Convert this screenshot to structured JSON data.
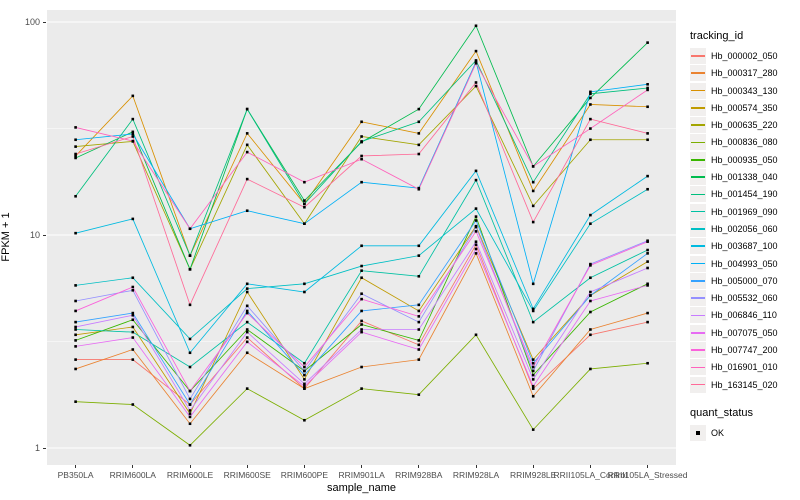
{
  "colors": {
    "panel_background": "#EBEBEB",
    "grid_major": "#FFFFFF",
    "grid_minor": "#FFFFFF",
    "tick_label": "#4D4D4D",
    "tick_mark": "#333333",
    "point": "#000000",
    "legend_key_fill": "#F1EFEE"
  },
  "legend": {
    "color_title": "tracking_id",
    "shape_title": "quant_status",
    "shape_items": [
      {
        "label": "OK",
        "marker": "black-square"
      }
    ]
  },
  "chart_data": {
    "type": "line",
    "title": "",
    "xlabel": "sample_name",
    "ylabel": "FPKM + 1",
    "y_scale": "log10",
    "ylim": [
      1,
      100
    ],
    "grid": true,
    "legend_position": "right",
    "point_marker": "black-square",
    "y_ticks": [
      {
        "value": 100,
        "label": "100"
      },
      {
        "value": 10,
        "label": "10"
      },
      {
        "value": 1,
        "label": "1"
      }
    ],
    "minor_gridlines": [
      3.1623,
      31.623
    ],
    "x_categories": [
      "PB350LA",
      "RRIM600LA",
      "RRIM600LE",
      "RRIM600SE",
      "RRIM600PE",
      "RRIM901LA",
      "RRIM928BA",
      "RRIM928LA",
      "RRIM928LE",
      "RRII105LA_Control",
      "RRII105LA_Stressed"
    ],
    "series": [
      {
        "tracking_id": "Hb_000002_050",
        "color": "#F8766D",
        "values": [
          2.6,
          2.6,
          1.6,
          3.3,
          1.9,
          3.95,
          3.05,
          9.0,
          1.9,
          3.4,
          3.9
        ]
      },
      {
        "tracking_id": "Hb_000317_280",
        "color": "#EA8331",
        "values": [
          2.35,
          2.9,
          1.3,
          2.8,
          1.9,
          2.4,
          2.6,
          8.2,
          1.75,
          3.6,
          4.3
        ]
      },
      {
        "tracking_id": "Hb_000343_130",
        "color": "#D89000",
        "values": [
          23.5,
          45,
          8.0,
          30,
          14,
          34,
          30,
          73,
          16.1,
          41,
          40
        ]
      },
      {
        "tracking_id": "Hb_000574_350",
        "color": "#C09B00",
        "values": [
          3.4,
          3.7,
          1.45,
          5.4,
          2.1,
          6.3,
          4.4,
          11,
          2.6,
          5.2,
          7.5
        ]
      },
      {
        "tracking_id": "Hb_000635_220",
        "color": "#A3A500",
        "values": [
          26,
          27.5,
          6.9,
          26.5,
          11.3,
          29,
          26.5,
          50,
          13.7,
          28,
          28
        ]
      },
      {
        "tracking_id": "Hb_000836_080",
        "color": "#7CAE00",
        "values": [
          1.65,
          1.6,
          1.03,
          1.9,
          1.35,
          1.9,
          1.78,
          3.4,
          1.22,
          2.35,
          2.5
        ]
      },
      {
        "tracking_id": "Hb_000935_050",
        "color": "#39B600",
        "values": [
          3.2,
          4.0,
          1.85,
          3.6,
          2.3,
          3.8,
          3.2,
          12.2,
          2.2,
          4.35,
          5.9
        ]
      },
      {
        "tracking_id": "Hb_001338_040",
        "color": "#00BB4E",
        "values": [
          23,
          30.5,
          6.9,
          39,
          14.5,
          27.3,
          39,
          96,
          21,
          44,
          80
        ]
      },
      {
        "tracking_id": "Hb_001454_190",
        "color": "#00BF7D",
        "values": [
          15.2,
          35,
          8.0,
          39,
          14,
          27.5,
          34,
          66,
          17.7,
          46,
          49
        ]
      },
      {
        "tracking_id": "Hb_001969_090",
        "color": "#00C1A3",
        "values": [
          3.6,
          3.5,
          2.4,
          3.9,
          2.5,
          6.8,
          6.4,
          18.1,
          3.9,
          6.3,
          8.5
        ]
      },
      {
        "tracking_id": "Hb_002056_060",
        "color": "#00BFC4",
        "values": [
          5.8,
          6.3,
          3.25,
          5.6,
          5.9,
          7.15,
          8.0,
          13.3,
          4.4,
          11.3,
          16.4
        ]
      },
      {
        "tracking_id": "Hb_003687_100",
        "color": "#00BAE0",
        "values": [
          10.2,
          11.9,
          2.8,
          5.9,
          5.4,
          8.9,
          8.9,
          20,
          4.5,
          12.4,
          18.9
        ]
      },
      {
        "tracking_id": "Hb_004993_050",
        "color": "#00B0F6",
        "values": [
          28,
          29.8,
          10.7,
          13,
          11.3,
          17.7,
          16.6,
          65,
          5.9,
          47,
          51
        ]
      },
      {
        "tracking_id": "Hb_005000_070",
        "color": "#35A2FF",
        "values": [
          3.9,
          4.3,
          1.6,
          4.4,
          2.2,
          4.4,
          4.7,
          11.7,
          2.5,
          5.2,
          8.2
        ]
      },
      {
        "tracking_id": "Hb_005532_060",
        "color": "#9590FF",
        "values": [
          4.9,
          5.5,
          1.7,
          4.65,
          2.3,
          5.3,
          3.9,
          10.9,
          2.3,
          7.3,
          9.4
        ]
      },
      {
        "tracking_id": "Hb_006846_110",
        "color": "#C77CFF",
        "values": [
          3.7,
          4.2,
          1.5,
          3.5,
          2.0,
          3.6,
          3.6,
          9.3,
          2.1,
          5.4,
          7.0
        ]
      },
      {
        "tracking_id": "Hb_007075_050",
        "color": "#E76BF3",
        "values": [
          3.0,
          3.3,
          1.4,
          3.15,
          1.95,
          3.5,
          2.9,
          8.6,
          1.95,
          4.9,
          5.8
        ]
      },
      {
        "tracking_id": "Hb_007747_200",
        "color": "#FA62DB",
        "values": [
          4.4,
          5.7,
          1.85,
          4.3,
          2.4,
          5.0,
          4.15,
          10.4,
          2.4,
          7.2,
          9.3
        ]
      },
      {
        "tracking_id": "Hb_016901_010",
        "color": "#FF62BC",
        "values": [
          32,
          27.6,
          10.7,
          24.5,
          17.7,
          22.7,
          16.4,
          64,
          21,
          31.6,
          48
        ]
      },
      {
        "tracking_id": "Hb_163145_020",
        "color": "#FF6A98",
        "values": [
          24,
          29,
          4.7,
          18.3,
          13.5,
          23.5,
          24,
          52,
          11.5,
          35,
          30
        ]
      }
    ]
  }
}
